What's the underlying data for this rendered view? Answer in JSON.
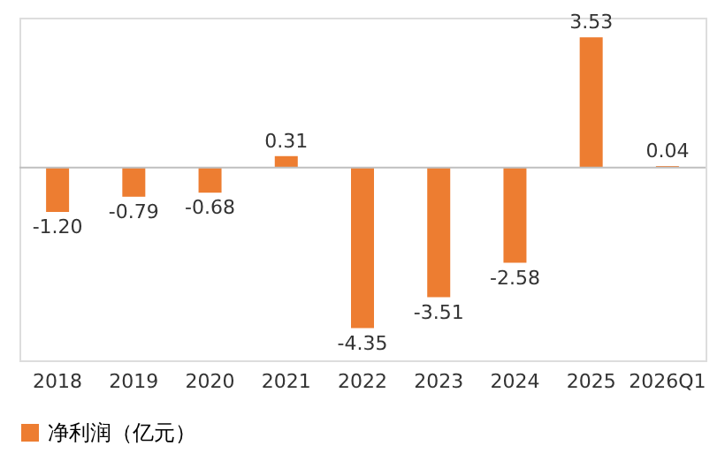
{
  "chart_data": {
    "type": "bar",
    "categories": [
      "2018",
      "2019",
      "2020",
      "2021",
      "2022",
      "2023",
      "2024",
      "2025",
      "2026Q1"
    ],
    "series": [
      {
        "name": "净利润（亿元）",
        "color": "#ed7d31",
        "values": [
          -1.2,
          -0.79,
          -0.68,
          0.31,
          -4.35,
          -3.51,
          -2.58,
          3.53,
          0.04
        ],
        "value_labels": [
          "-1.20",
          "-0.79",
          "-0.68",
          "0.31",
          "-4.35",
          "-3.51",
          "-2.58",
          "3.53",
          "0.04"
        ]
      }
    ],
    "data_labels": true,
    "legend": "bottom",
    "grid": false,
    "tick_labels": "x"
  }
}
